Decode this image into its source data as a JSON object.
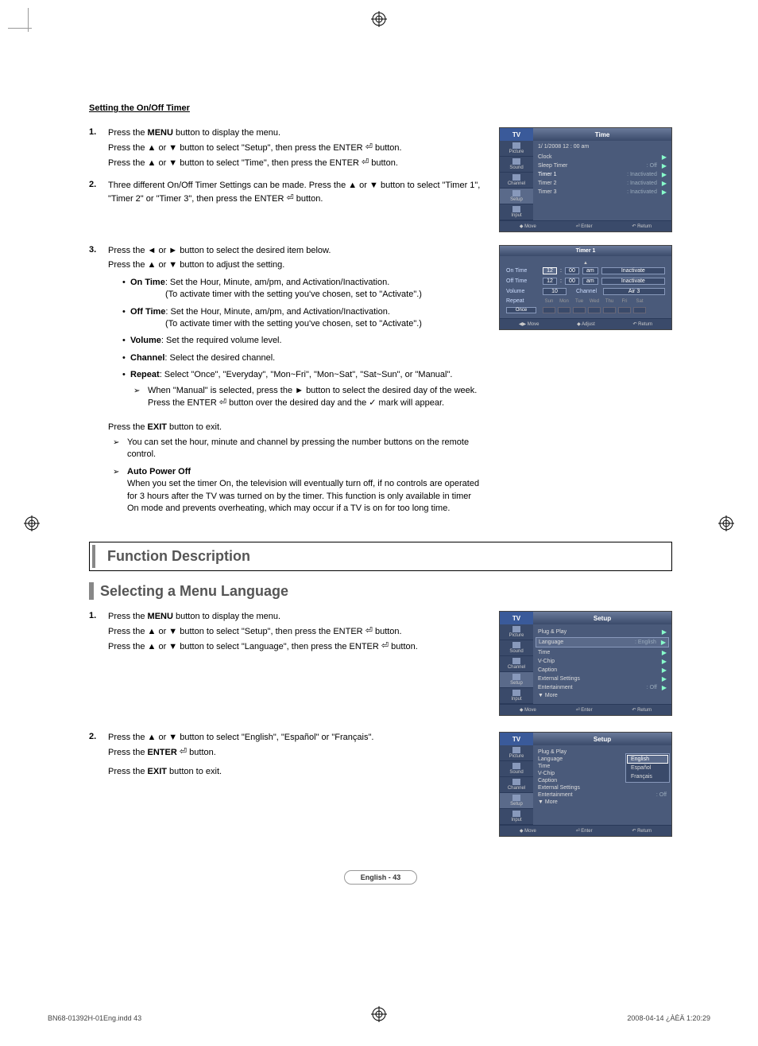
{
  "section1_title": "Setting the On/Off Timer",
  "step1": {
    "num": "1.",
    "l1a": "Press the ",
    "l1b": "MENU",
    "l1c": " button to display the menu.",
    "l2": "Press the ▲ or ▼ button to select \"Setup\", then press the ENTER",
    "l2b": " button.",
    "l3": "Press the ▲ or ▼ button to select \"Time\", then press the ENTER",
    "l3b": " button."
  },
  "step2": {
    "num": "2.",
    "l1": "Three different On/Off Timer Settings can be made. Press the ▲ or ▼ button to select \"Timer 1\", \"Timer 2\" or \"Timer 3\", then press the ENTER",
    "l1b": " button."
  },
  "step3": {
    "num": "3.",
    "l1": "Press the ◄ or ► button to select the desired item below.",
    "l2": "Press the ▲ or ▼ button to adjust the setting."
  },
  "bullets": {
    "b1a": "On Time",
    "b1b": ": Set the Hour, Minute, am/pm, and Activation/Inactivation.",
    "b1c": "(To activate timer with the setting you've chosen, set to \"Activate\".)",
    "b2a": "Off Time",
    "b2b": ": Set the Hour, Minute, am/pm, and Activation/Inactivation.",
    "b2c": "(To activate timer with the setting you've chosen, set to \"Activate\".)",
    "b3a": "Volume",
    "b3b": ": Set the required volume level.",
    "b4a": "Channel",
    "b4b": ": Select the desired channel.",
    "b5a": "Repeat",
    "b5b": ": Select \"Once\", \"Everyday\", \"Mon~Fri\", \"Mon~Sat\", \"Sat~Sun\", or \"Manual\".",
    "b5note": "When \"Manual\" is selected, press the ► button to select the desired day of the week. Press the ENTER",
    "b5note2": " button over the desired day and the ✓ mark will appear."
  },
  "exit_line": "Press the EXIT button to exit.",
  "notes": {
    "n1": "You can set the hour, minute and channel by pressing the number buttons on the remote control.",
    "n2a": "Auto Power Off",
    "n2b": "When you set the timer On, the television will eventually turn off, if no controls are operated for 3 hours after the TV was turned on by the timer. This function is only available in timer On mode and prevents overheating, which may occur if a TV is on for too long time."
  },
  "heading2": "Function Description",
  "heading3": "Selecting a Menu Language",
  "lang_step1": {
    "num": "1.",
    "l1a": "Press the ",
    "l1b": "MENU",
    "l1c": " button to display the menu.",
    "l2": "Press the ▲ or ▼ button to select \"Setup\", then press the ENTER",
    "l2b": " button.",
    "l3": "Press the ▲ or ▼ button to select \"Language\", then press the ENTER",
    "l3b": " button."
  },
  "lang_step2": {
    "num": "2.",
    "l1": "Press the ▲ or ▼ button to select \"English\", \"Español\" or \"Français\".",
    "l2a": "Press the ",
    "l2b": "ENTER",
    "l2c": " button.",
    "l3a": "Press the ",
    "l3b": "EXIT",
    "l3c": " button to exit."
  },
  "osd_time": {
    "tv": "TV",
    "title": "Time",
    "side": [
      "Picture",
      "Sound",
      "Channel",
      "Setup",
      "Input"
    ],
    "info": "1/ 1/2008   12 : 00 am",
    "rows": [
      {
        "label": "Clock",
        "val": "",
        "arrow": true
      },
      {
        "label": "Sleep Timer",
        "val": ": Off",
        "arrow": true
      },
      {
        "label": "Timer 1",
        "val": ": Inactivated",
        "arrow": true,
        "hl": true
      },
      {
        "label": "Timer 2",
        "val": ": Inactivated",
        "arrow": true
      },
      {
        "label": "Timer 3",
        "val": ": Inactivated",
        "arrow": true
      }
    ],
    "footer": [
      "◆ Move",
      "⏎ Enter",
      "↶ Return"
    ]
  },
  "osd_timer1": {
    "title": "Timer 1",
    "on_time": "On Time",
    "off_time": "Off Time",
    "volume": "Volume",
    "channel": "Channel",
    "repeat": "Repeat",
    "h12": "12",
    "m00": "00",
    "am": "am",
    "inact": "Inactivate",
    "vol": "10",
    "ch": "Air  3",
    "once": "Once",
    "days": [
      "Sun",
      "Mon",
      "Tue",
      "Wed",
      "Thu",
      "Fri",
      "Sat"
    ],
    "footer": [
      "◀▶ Move",
      "◆ Adjust",
      "↶ Return"
    ]
  },
  "osd_setup": {
    "tv": "TV",
    "title": "Setup",
    "side": [
      "Picture",
      "Sound",
      "Channel",
      "Setup",
      "Input"
    ],
    "rows": [
      {
        "label": "Plug & Play",
        "arrow": true
      },
      {
        "label": "Language",
        "val": ": English",
        "arrow": true,
        "box": true
      },
      {
        "label": "Time",
        "arrow": true
      },
      {
        "label": "V-Chip",
        "arrow": true
      },
      {
        "label": "Caption",
        "arrow": true
      },
      {
        "label": "External Settings",
        "arrow": true
      },
      {
        "label": "Entertainment",
        "val": ": Off",
        "arrow": true
      },
      {
        "label": "▼ More"
      }
    ],
    "footer": [
      "◆ Move",
      "⏎ Enter",
      "↶ Return"
    ]
  },
  "osd_setup2": {
    "tv": "TV",
    "title": "Setup",
    "side": [
      "Picture",
      "Sound",
      "Channel",
      "Setup",
      "Input"
    ],
    "rows": [
      {
        "label": "Plug & Play"
      },
      {
        "label": "Language",
        "val": ":"
      },
      {
        "label": "Time"
      },
      {
        "label": "V-Chip"
      },
      {
        "label": "Caption"
      },
      {
        "label": "External Settings"
      },
      {
        "label": "Entertainment",
        "val": ": Off"
      },
      {
        "label": "▼ More"
      }
    ],
    "langs": [
      "English",
      "Español",
      "Français"
    ],
    "footer": [
      "◆ Move",
      "⏎ Enter",
      "↶ Return"
    ]
  },
  "page_num": "English - 43",
  "footer_left": "BN68-01392H-01Eng.indd   43",
  "footer_right": "2008-04-14   ¿ÀÈÄ 1:20:29"
}
